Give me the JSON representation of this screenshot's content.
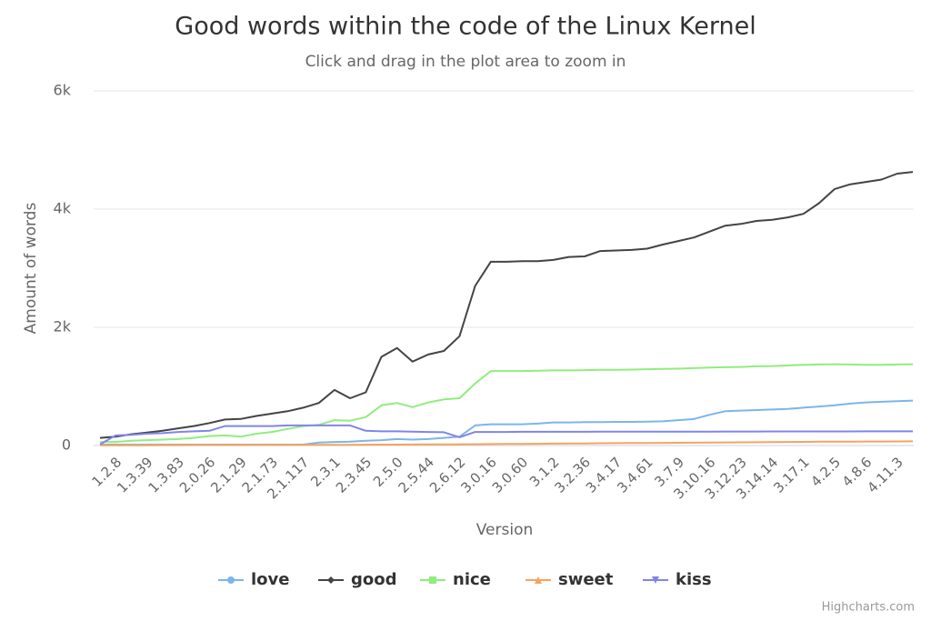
{
  "chart_data": {
    "type": "line",
    "title": "Good words within the code of the Linux Kernel",
    "subtitle": "Click and drag in the plot area to zoom in",
    "x_label": "Version",
    "y_label": "Amount of words",
    "credits": "Highcharts.com",
    "categories": [
      null,
      "1.2.8",
      null,
      "1.3.39",
      null,
      "1.3.83",
      null,
      "2.0.26",
      null,
      "2.1.29",
      null,
      "2.1.73",
      null,
      "2.1.117",
      null,
      "2.3.1",
      null,
      "2.3.45",
      null,
      "2.5.0",
      null,
      "2.5.44",
      null,
      "2.6.12",
      null,
      "3.0.16",
      null,
      "3.0.60",
      null,
      "3.1.2",
      null,
      "3.2.36",
      null,
      "3.4.17",
      null,
      "3.4.61",
      null,
      "3.7.9",
      null,
      "3.10.16",
      null,
      "3.12.23",
      null,
      "3.14.14",
      null,
      "3.17.1",
      null,
      "4.2.5",
      null,
      "4.8.6",
      null,
      "4.11.3",
      null
    ],
    "ylim": [
      0,
      6000
    ],
    "yticks": [
      0,
      {
        "value": 2000,
        "label": "2k"
      },
      {
        "value": 4000,
        "label": "4k"
      },
      {
        "value": 6000,
        "label": "6k"
      }
    ],
    "grid": true,
    "legend": "bottom",
    "series": [
      {
        "name": "love",
        "color": "#7cb5ec",
        "marker": "circle",
        "values": [
          15,
          15,
          15,
          15,
          15,
          15,
          15,
          15,
          15,
          15,
          15,
          15,
          15,
          15,
          50,
          60,
          65,
          80,
          90,
          110,
          100,
          110,
          130,
          150,
          340,
          360,
          360,
          360,
          370,
          390,
          390,
          395,
          395,
          400,
          400,
          405,
          410,
          430,
          450,
          520,
          580,
          590,
          600,
          610,
          620,
          640,
          660,
          680,
          710,
          730,
          740,
          750,
          760
        ]
      },
      {
        "name": "good",
        "color": "#434348",
        "marker": "diamond",
        "values": [
          130,
          150,
          190,
          220,
          250,
          290,
          330,
          380,
          440,
          450,
          500,
          540,
          580,
          640,
          720,
          940,
          800,
          900,
          1500,
          1650,
          1420,
          1540,
          1600,
          1850,
          2700,
          3110,
          3110,
          3120,
          3120,
          3140,
          3190,
          3200,
          3290,
          3300,
          3310,
          3330,
          3400,
          3460,
          3520,
          3620,
          3720,
          3750,
          3800,
          3820,
          3860,
          3920,
          4100,
          4340,
          4420,
          4460,
          4500,
          4600,
          4630
        ]
      },
      {
        "name": "nice",
        "color": "#90ed7d",
        "marker": "square",
        "values": [
          60,
          60,
          80,
          90,
          100,
          110,
          130,
          160,
          170,
          150,
          200,
          230,
          280,
          330,
          350,
          430,
          420,
          480,
          680,
          720,
          650,
          730,
          780,
          800,
          1050,
          1260,
          1260,
          1260,
          1265,
          1270,
          1270,
          1275,
          1280,
          1280,
          1285,
          1290,
          1295,
          1300,
          1310,
          1320,
          1325,
          1330,
          1340,
          1345,
          1355,
          1365,
          1370,
          1375,
          1370,
          1365,
          1365,
          1370,
          1375
        ]
      },
      {
        "name": "sweet",
        "color": "#f7a35c",
        "marker": "triangle",
        "values": [
          5,
          5,
          5,
          5,
          6,
          6,
          7,
          7,
          8,
          8,
          9,
          9,
          10,
          10,
          11,
          12,
          13,
          14,
          15,
          16,
          17,
          18,
          19,
          20,
          22,
          24,
          26,
          28,
          30,
          32,
          34,
          36,
          38,
          40,
          41,
          42,
          44,
          46,
          48,
          50,
          52,
          54,
          56,
          58,
          60,
          62,
          64,
          65,
          66,
          67,
          68,
          69,
          70
        ]
      },
      {
        "name": "kiss",
        "color": "#8085e9",
        "marker": "triangle-down",
        "values": [
          20,
          170,
          180,
          200,
          210,
          230,
          240,
          250,
          330,
          330,
          330,
          330,
          340,
          340,
          340,
          340,
          340,
          250,
          240,
          240,
          235,
          230,
          225,
          140,
          230,
          230,
          230,
          232,
          232,
          232,
          233,
          233,
          234,
          234,
          234,
          235,
          235,
          235,
          236,
          236,
          237,
          237,
          237,
          238,
          238,
          238,
          239,
          239,
          239,
          240,
          240,
          240,
          240
        ]
      }
    ]
  }
}
